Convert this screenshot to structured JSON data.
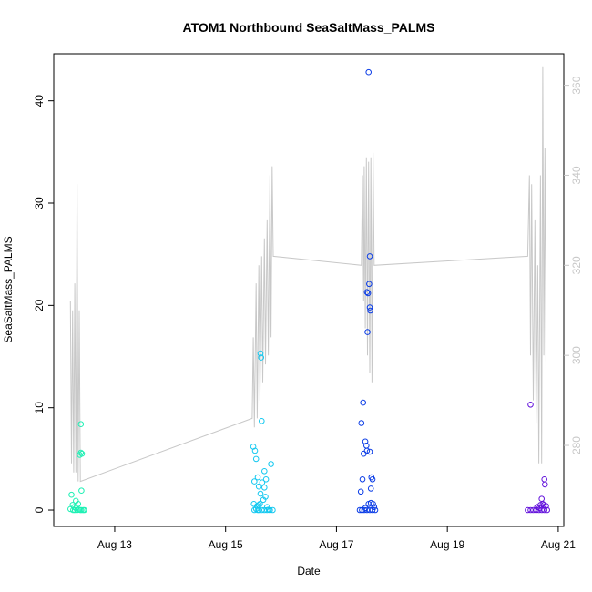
{
  "chart_data": {
    "type": "scatter",
    "title": "ATOM1 Northbound SeaSaltMass_PALMS",
    "xlabel": "Date",
    "ylabel": "SeaSaltMass_PALMS",
    "x_unit": "days (August)",
    "xlim": [
      11.9,
      21.1
    ],
    "ylim": [
      -1.6,
      44.6
    ],
    "y2lim": [
      262.0,
      367.0
    ],
    "x_ticks": [
      {
        "value": 13,
        "label": "Aug 13"
      },
      {
        "value": 15,
        "label": "Aug 15"
      },
      {
        "value": 17,
        "label": "Aug 17"
      },
      {
        "value": 19,
        "label": "Aug 19"
      },
      {
        "value": 21,
        "label": "Aug 21"
      }
    ],
    "y_ticks": [
      {
        "value": 0,
        "label": "0"
      },
      {
        "value": 10,
        "label": "10"
      },
      {
        "value": 20,
        "label": "20"
      },
      {
        "value": 30,
        "label": "30"
      },
      {
        "value": 40,
        "label": "40"
      }
    ],
    "y2_ticks": [
      {
        "value": 280,
        "label": "280"
      },
      {
        "value": 300,
        "label": "300"
      },
      {
        "value": 320,
        "label": "320"
      },
      {
        "value": 340,
        "label": "340"
      },
      {
        "value": 360,
        "label": "360"
      }
    ],
    "grid": false,
    "secondary_line_color": "#c8c8c8",
    "series": [
      {
        "color": "#1ef0b4",
        "points": [
          [
            12.22,
            1.5
          ],
          [
            12.3,
            0.9
          ],
          [
            12.24,
            0.5
          ],
          [
            12.2,
            0.1
          ],
          [
            12.25,
            0.0
          ],
          [
            12.28,
            0.0
          ],
          [
            12.32,
            0.0
          ],
          [
            12.35,
            0.05
          ],
          [
            12.38,
            0.0
          ],
          [
            12.4,
            0.0
          ],
          [
            12.43,
            0.0
          ],
          [
            12.3,
            0.2
          ],
          [
            12.34,
            0.6
          ],
          [
            12.4,
            1.9
          ],
          [
            12.37,
            5.4
          ],
          [
            12.39,
            5.6
          ],
          [
            12.41,
            5.5
          ],
          [
            12.39,
            8.4
          ],
          [
            12.45,
            0.0
          ],
          [
            12.27,
            0.3
          ]
        ]
      },
      {
        "color": "#14c8f0",
        "points": [
          [
            15.5,
            6.2
          ],
          [
            15.53,
            5.8
          ],
          [
            15.55,
            5.0
          ],
          [
            15.58,
            3.2
          ],
          [
            15.52,
            2.8
          ],
          [
            15.6,
            2.3
          ],
          [
            15.63,
            1.6
          ],
          [
            15.66,
            2.7
          ],
          [
            15.7,
            2.2
          ],
          [
            15.68,
            1.0
          ],
          [
            15.72,
            1.3
          ],
          [
            15.62,
            0.6
          ],
          [
            15.51,
            0.6
          ],
          [
            15.57,
            0.4
          ],
          [
            15.63,
            15.3
          ],
          [
            15.64,
            14.9
          ],
          [
            15.65,
            8.7
          ],
          [
            15.7,
            3.8
          ],
          [
            15.73,
            3.0
          ],
          [
            15.82,
            4.5
          ],
          [
            15.55,
            0.1
          ],
          [
            15.6,
            0.0
          ],
          [
            15.65,
            0.0
          ],
          [
            15.7,
            0.0
          ],
          [
            15.75,
            0.0
          ],
          [
            15.8,
            0.0
          ],
          [
            15.85,
            0.0
          ],
          [
            15.52,
            0.0
          ],
          [
            15.58,
            0.0
          ],
          [
            15.78,
            0.05
          ],
          [
            15.6,
            0.5
          ],
          [
            15.75,
            0.3
          ]
        ]
      },
      {
        "color": "#0a3ce6",
        "points": [
          [
            17.58,
            42.8
          ],
          [
            17.6,
            24.8
          ],
          [
            17.59,
            22.1
          ],
          [
            17.55,
            21.3
          ],
          [
            17.57,
            21.2
          ],
          [
            17.6,
            19.8
          ],
          [
            17.61,
            19.5
          ],
          [
            17.56,
            17.4
          ],
          [
            17.48,
            10.5
          ],
          [
            17.45,
            8.5
          ],
          [
            17.52,
            6.7
          ],
          [
            17.54,
            6.3
          ],
          [
            17.49,
            5.5
          ],
          [
            17.55,
            5.8
          ],
          [
            17.6,
            5.7
          ],
          [
            17.47,
            3.0
          ],
          [
            17.63,
            3.2
          ],
          [
            17.65,
            3.0
          ],
          [
            17.62,
            2.1
          ],
          [
            17.44,
            1.8
          ],
          [
            17.58,
            0.6
          ],
          [
            17.62,
            0.7
          ],
          [
            17.66,
            0.6
          ],
          [
            17.42,
            0.0
          ],
          [
            17.46,
            0.0
          ],
          [
            17.5,
            0.0
          ],
          [
            17.55,
            0.0
          ],
          [
            17.6,
            0.0
          ],
          [
            17.65,
            0.0
          ],
          [
            17.7,
            0.0
          ],
          [
            17.52,
            0.2
          ],
          [
            17.68,
            0.3
          ]
        ]
      },
      {
        "color": "#6414dc",
        "points": [
          [
            20.5,
            10.3
          ],
          [
            20.75,
            3.0
          ],
          [
            20.76,
            2.5
          ],
          [
            20.7,
            1.1
          ],
          [
            20.72,
            0.6
          ],
          [
            20.74,
            0.5
          ],
          [
            20.78,
            0.4
          ],
          [
            20.66,
            0.2
          ],
          [
            20.45,
            0.0
          ],
          [
            20.5,
            0.0
          ],
          [
            20.55,
            0.0
          ],
          [
            20.6,
            0.0
          ],
          [
            20.65,
            0.0
          ],
          [
            20.7,
            0.0
          ],
          [
            20.75,
            0.0
          ],
          [
            20.8,
            0.0
          ],
          [
            20.62,
            0.3
          ],
          [
            20.68,
            0.5
          ]
        ]
      }
    ],
    "secondary_line": [
      [
        12.2,
        312
      ],
      [
        12.22,
        276
      ],
      [
        12.24,
        310
      ],
      [
        12.26,
        274
      ],
      [
        12.28,
        316
      ],
      [
        12.3,
        274
      ],
      [
        12.32,
        338
      ],
      [
        12.34,
        272
      ],
      [
        12.36,
        310
      ],
      [
        12.38,
        272
      ],
      [
        15.48,
        286
      ],
      [
        15.5,
        304
      ],
      [
        15.52,
        284
      ],
      [
        15.55,
        316
      ],
      [
        15.57,
        286
      ],
      [
        15.6,
        320
      ],
      [
        15.62,
        290
      ],
      [
        15.65,
        322
      ],
      [
        15.67,
        294
      ],
      [
        15.7,
        326
      ],
      [
        15.72,
        298
      ],
      [
        15.75,
        330
      ],
      [
        15.77,
        300
      ],
      [
        15.8,
        340
      ],
      [
        15.82,
        304
      ],
      [
        15.84,
        342
      ],
      [
        15.86,
        322
      ],
      [
        17.45,
        320
      ],
      [
        17.47,
        340
      ],
      [
        17.49,
        312
      ],
      [
        17.5,
        342
      ],
      [
        17.52,
        306
      ],
      [
        17.54,
        344
      ],
      [
        17.56,
        300
      ],
      [
        17.58,
        343
      ],
      [
        17.6,
        296
      ],
      [
        17.62,
        344
      ],
      [
        17.64,
        294
      ],
      [
        17.66,
        345
      ],
      [
        17.68,
        320
      ],
      [
        20.45,
        322
      ],
      [
        20.48,
        340
      ],
      [
        20.5,
        300
      ],
      [
        20.52,
        338
      ],
      [
        20.55,
        290
      ],
      [
        20.58,
        330
      ],
      [
        20.6,
        285
      ],
      [
        20.63,
        320
      ],
      [
        20.65,
        276
      ],
      [
        20.68,
        340
      ],
      [
        20.7,
        276
      ],
      [
        20.72,
        364
      ],
      [
        20.74,
        300
      ],
      [
        20.76,
        346
      ],
      [
        20.78,
        297
      ]
    ]
  }
}
